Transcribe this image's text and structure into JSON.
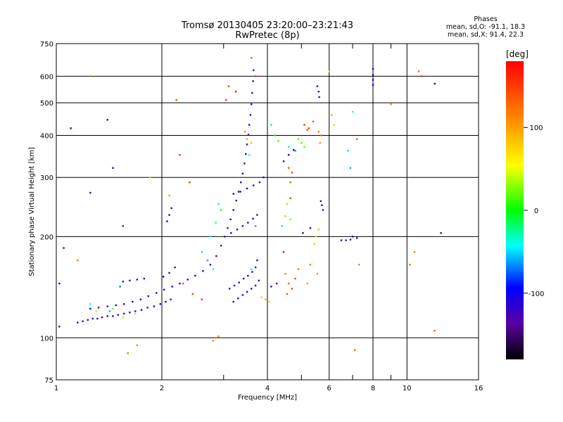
{
  "chart_data": {
    "type": "scatter",
    "title": "Tromsø 20130405 23:20:00–23:21:43",
    "subtitle": "RwPretec (8p)",
    "xlabel": "Frequency [MHz]",
    "ylabel": "Stationary phase Virtual Height [km]",
    "x_scale": "log",
    "y_scale": "log",
    "xlim": [
      1,
      16
    ],
    "ylim": [
      75,
      750
    ],
    "x_ticks": [
      "1",
      "2",
      "4",
      "6",
      "8",
      "10",
      "16"
    ],
    "y_ticks": [
      "75",
      "100",
      "200",
      "300",
      "400",
      "500",
      "600",
      "750"
    ],
    "x_ticks_values": [
      1,
      2,
      4,
      6,
      8,
      10,
      16
    ],
    "y_ticks_values": [
      75,
      100,
      200,
      300,
      400,
      500,
      600,
      750
    ],
    "grid": true,
    "phase_stats": {
      "heading": "Phases",
      "line_o": "mean, sd,O: -91.1, 18.3",
      "line_x": "mean, sd,X:  91.4, 22.3"
    },
    "colorbar": {
      "label": "[deg]",
      "range": [
        -180,
        180
      ],
      "ticks": [
        "100",
        "0",
        "-100"
      ],
      "tick_values": [
        100,
        0,
        -100
      ]
    },
    "series": [
      {
        "values": [
          [
            1.15,
            111,
            -120
          ],
          [
            1.19,
            112,
            -115
          ],
          [
            1.23,
            113,
            -110
          ],
          [
            1.27,
            114,
            -112
          ],
          [
            1.31,
            114,
            -118
          ],
          [
            1.35,
            115,
            -105
          ],
          [
            1.4,
            116,
            -110
          ],
          [
            1.45,
            116,
            -115
          ],
          [
            1.5,
            117,
            -120
          ],
          [
            1.56,
            118,
            -110
          ],
          [
            1.62,
            119,
            -112
          ],
          [
            1.68,
            120,
            -118
          ],
          [
            1.75,
            121,
            -108
          ],
          [
            1.82,
            123,
            -115
          ],
          [
            1.9,
            124,
            -112
          ],
          [
            1.98,
            126,
            -120
          ],
          [
            2.05,
            128,
            -110
          ],
          [
            2.12,
            130,
            -116
          ],
          [
            1.25,
            122,
            -110
          ],
          [
            1.32,
            123,
            -108
          ],
          [
            1.4,
            124,
            -112
          ],
          [
            1.48,
            125,
            -115
          ],
          [
            1.56,
            126,
            -110
          ],
          [
            1.65,
            128,
            -106
          ],
          [
            1.74,
            130,
            -112
          ],
          [
            1.83,
            133,
            -110
          ],
          [
            1.93,
            136,
            -115
          ],
          [
            2.03,
            139,
            -112
          ],
          [
            2.14,
            142,
            -108
          ],
          [
            2.25,
            145,
            -110
          ],
          [
            2.37,
            149,
            -112
          ],
          [
            2.49,
            153,
            -114
          ],
          [
            2.62,
            158,
            -110
          ],
          [
            2.75,
            165,
            -108
          ],
          [
            2.86,
            175,
            -112
          ],
          [
            2.95,
            188,
            -110
          ],
          [
            3.02,
            200,
            -115
          ],
          [
            3.08,
            212,
            -110
          ],
          [
            3.14,
            225,
            -108
          ],
          [
            3.2,
            240,
            -112
          ],
          [
            3.26,
            256,
            -110
          ],
          [
            3.31,
            272,
            -115
          ],
          [
            3.36,
            290,
            -112
          ],
          [
            3.4,
            308,
            -110
          ],
          [
            3.44,
            330,
            -108
          ],
          [
            3.47,
            352,
            -112
          ],
          [
            3.5,
            376,
            -110
          ],
          [
            3.53,
            402,
            -112
          ],
          [
            3.55,
            430,
            -108
          ],
          [
            3.58,
            460,
            -110
          ],
          [
            3.6,
            495,
            -112
          ],
          [
            3.62,
            535,
            -110
          ],
          [
            3.64,
            580,
            -115
          ],
          [
            3.65,
            625,
            -110
          ],
          [
            3.12,
            140,
            -115
          ],
          [
            3.22,
            143,
            -112
          ],
          [
            3.32,
            146,
            -110
          ],
          [
            3.42,
            150,
            -108
          ],
          [
            3.52,
            153,
            -112
          ],
          [
            3.62,
            157,
            -115
          ],
          [
            3.7,
            162,
            -110
          ],
          [
            3.74,
            170,
            -112
          ],
          [
            3.2,
            128,
            -108
          ],
          [
            3.3,
            131,
            -112
          ],
          [
            3.4,
            134,
            -110
          ],
          [
            3.5,
            137,
            -115
          ],
          [
            3.6,
            140,
            -112
          ],
          [
            3.7,
            143,
            -110
          ],
          [
            3.78,
            148,
            -108
          ],
          [
            3.15,
            205,
            -112
          ],
          [
            3.28,
            210,
            -110
          ],
          [
            3.4,
            215,
            -108
          ],
          [
            3.52,
            220,
            -112
          ],
          [
            3.64,
            226,
            -110
          ],
          [
            3.74,
            232,
            -115
          ],
          [
            3.2,
            268,
            -110
          ],
          [
            3.35,
            272,
            -112
          ],
          [
            3.5,
            278,
            -108
          ],
          [
            3.65,
            284,
            -110
          ],
          [
            3.8,
            290,
            -115
          ],
          [
            3.9,
            300,
            -112
          ],
          [
            1.55,
            147,
            -110
          ],
          [
            1.62,
            148,
            -112
          ],
          [
            1.7,
            149,
            -108
          ],
          [
            1.78,
            150,
            -110
          ],
          [
            2.02,
            152,
            -112
          ],
          [
            2.1,
            156,
            -110
          ],
          [
            2.18,
            162,
            -115
          ],
          [
            2.07,
            222,
            -110
          ],
          [
            2.1,
            232,
            -112
          ],
          [
            2.13,
            243,
            -108
          ],
          [
            4.45,
            335,
            -110
          ],
          [
            4.6,
            350,
            -112
          ],
          [
            4.75,
            362,
            -115
          ],
          [
            4.25,
            145,
            -112
          ],
          [
            4.1,
            142,
            -115
          ],
          [
            5.05,
            205,
            -100
          ],
          [
            5.3,
            212,
            -105
          ],
          [
            5.55,
            560,
            -110
          ],
          [
            5.6,
            540,
            -112
          ],
          [
            5.62,
            520,
            -115
          ],
          [
            5.68,
            255,
            -120
          ],
          [
            5.72,
            248,
            -110
          ],
          [
            5.76,
            240,
            -112
          ],
          [
            6.5,
            195,
            -120
          ],
          [
            6.7,
            195,
            -122
          ],
          [
            6.9,
            196,
            -118
          ],
          [
            7.2,
            198,
            -120
          ],
          [
            7.0,
            200,
            -115
          ],
          [
            8.0,
            630,
            -110
          ],
          [
            8.0,
            605,
            -112
          ],
          [
            8.0,
            585,
            -115
          ],
          [
            8.0,
            565,
            -118
          ],
          [
            1.4,
            445,
            -110
          ],
          [
            1.45,
            320,
            -112
          ],
          [
            1.25,
            270,
            -115
          ],
          [
            1.1,
            420,
            -110
          ],
          [
            1.55,
            215,
            -130
          ],
          [
            1.05,
            185,
            -110
          ],
          [
            1.02,
            145,
            -105
          ],
          [
            1.02,
            108,
            -115
          ],
          [
            12.0,
            570,
            -110
          ],
          [
            12.5,
            205,
            -115
          ],
          [
            2.9,
            250,
            -30
          ],
          [
            2.95,
            240,
            -10
          ],
          [
            2.85,
            220,
            -20
          ],
          [
            2.75,
            200,
            -40
          ],
          [
            2.6,
            180,
            -50
          ],
          [
            2.7,
            170,
            -60
          ],
          [
            2.8,
            160,
            -30
          ],
          [
            3.7,
            215,
            -60
          ],
          [
            3.6,
            160,
            -40
          ],
          [
            3.55,
            350,
            -30
          ],
          [
            1.52,
            142,
            -70
          ],
          [
            1.42,
            120,
            -60
          ],
          [
            1.25,
            126,
            -40
          ],
          [
            4.4,
            215,
            -20
          ],
          [
            4.6,
            370,
            -40
          ],
          [
            4.8,
            360,
            -70
          ],
          [
            5.0,
            380,
            10
          ],
          [
            5.1,
            370,
            20
          ],
          [
            4.9,
            390,
            15
          ],
          [
            4.5,
            230,
            30
          ],
          [
            4.65,
            225,
            20
          ],
          [
            4.55,
            250,
            25
          ],
          [
            1.68,
            118,
            40
          ],
          [
            1.55,
            115,
            30
          ],
          [
            1.45,
            122,
            20
          ],
          [
            1.3,
            120,
            35
          ],
          [
            3.85,
            132,
            80
          ],
          [
            3.95,
            130,
            95
          ],
          [
            4.05,
            128,
            70
          ],
          [
            5.5,
            200,
            75
          ],
          [
            5.6,
            210,
            90
          ],
          [
            5.45,
            190,
            80
          ],
          [
            3.5,
            390,
            100
          ],
          [
            3.6,
            380,
            90
          ],
          [
            3.45,
            410,
            110
          ],
          [
            4.5,
            155,
            120
          ],
          [
            4.6,
            145,
            130
          ],
          [
            4.55,
            135,
            140
          ],
          [
            4.7,
            140,
            150
          ],
          [
            4.8,
            150,
            145
          ],
          [
            4.9,
            160,
            130
          ],
          [
            4.6,
            320,
            140
          ],
          [
            4.7,
            310,
            150
          ],
          [
            4.65,
            290,
            135
          ],
          [
            5.1,
            430,
            160
          ],
          [
            5.25,
            420,
            150
          ],
          [
            5.4,
            440,
            140
          ],
          [
            5.6,
            410,
            120
          ],
          [
            5.7,
            400,
            130
          ],
          [
            5.65,
            380,
            110
          ],
          [
            5.55,
            155,
            110
          ],
          [
            5.3,
            165,
            120
          ],
          [
            5.2,
            145,
            100
          ],
          [
            2.2,
            510,
            150
          ],
          [
            2.25,
            350,
            160
          ],
          [
            2.4,
            290,
            155
          ],
          [
            3.1,
            560,
            150
          ],
          [
            3.25,
            540,
            165
          ],
          [
            3.05,
            510,
            160
          ],
          [
            3.6,
            680,
            140
          ],
          [
            3.7,
            600,
            150
          ],
          [
            2.3,
            145,
            140
          ],
          [
            2.45,
            135,
            150
          ],
          [
            2.6,
            130,
            160
          ],
          [
            2.8,
            98,
            120
          ],
          [
            2.9,
            101,
            110
          ],
          [
            1.6,
            90,
            125
          ],
          [
            1.7,
            95,
            110
          ],
          [
            1.25,
            604,
            60
          ],
          [
            7.1,
            92,
            130
          ],
          [
            7.3,
            165,
            120
          ],
          [
            7.2,
            390,
            140
          ],
          [
            10.8,
            620,
            135
          ],
          [
            11.0,
            600,
            150
          ],
          [
            12.0,
            105,
            140
          ],
          [
            9.0,
            495,
            110
          ],
          [
            10.5,
            180,
            120
          ],
          [
            10.2,
            165,
            130
          ],
          [
            1.15,
            170,
            120
          ],
          [
            2.1,
            265,
            100
          ],
          [
            1.85,
            300,
            80
          ],
          [
            6.1,
            460,
            100
          ],
          [
            6.2,
            430,
            80
          ],
          [
            6.0,
            620,
            40
          ],
          [
            4.1,
            430,
            -10
          ],
          [
            4.2,
            400,
            5
          ],
          [
            4.3,
            385,
            15
          ],
          [
            6.8,
            360,
            -50
          ],
          [
            7.0,
            470,
            -40
          ],
          [
            6.9,
            320,
            -60
          ],
          [
            5.2,
            415,
            140
          ],
          [
            4.65,
            260,
            160
          ],
          [
            4.45,
            180,
            170
          ]
        ]
      }
    ]
  }
}
